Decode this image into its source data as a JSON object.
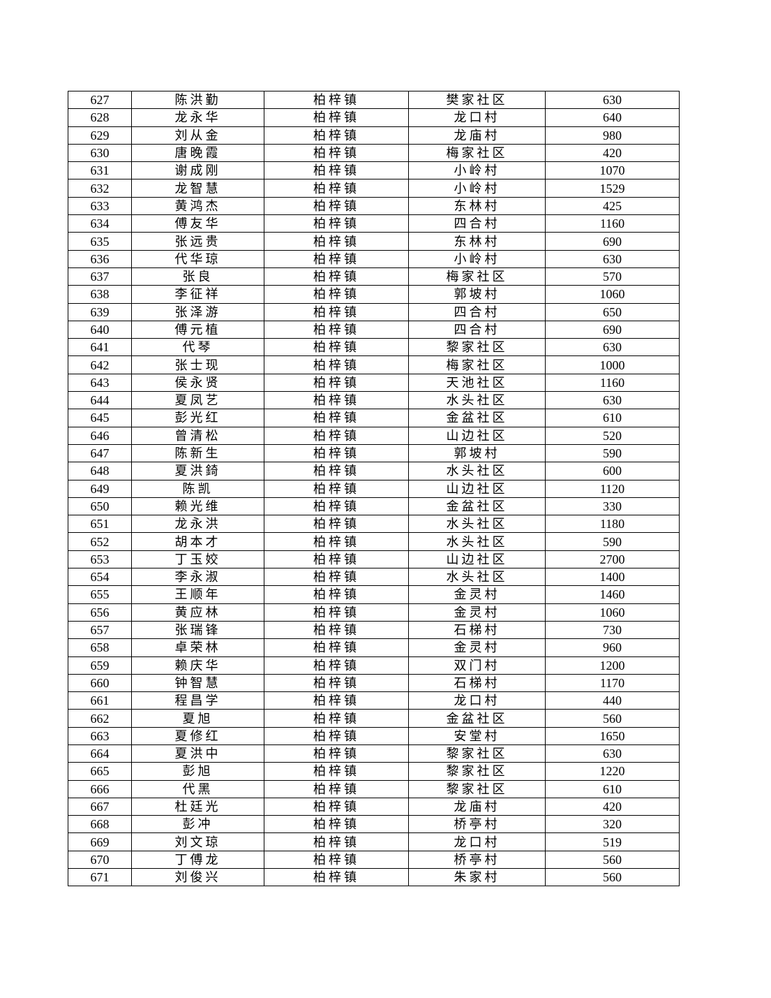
{
  "rows": [
    [
      "627",
      "陈洪勤",
      "柏梓镇",
      "樊家社区",
      "630"
    ],
    [
      "628",
      "龙永华",
      "柏梓镇",
      "龙口村",
      "640"
    ],
    [
      "629",
      "刘从金",
      "柏梓镇",
      "龙庙村",
      "980"
    ],
    [
      "630",
      "唐晚霞",
      "柏梓镇",
      "梅家社区",
      "420"
    ],
    [
      "631",
      "谢成刚",
      "柏梓镇",
      "小岭村",
      "1070"
    ],
    [
      "632",
      "龙智慧",
      "柏梓镇",
      "小岭村",
      "1529"
    ],
    [
      "633",
      "黄鸿杰",
      "柏梓镇",
      "东林村",
      "425"
    ],
    [
      "634",
      "傅友华",
      "柏梓镇",
      "四合村",
      "1160"
    ],
    [
      "635",
      "张远贵",
      "柏梓镇",
      "东林村",
      "690"
    ],
    [
      "636",
      "代华琼",
      "柏梓镇",
      "小岭村",
      "630"
    ],
    [
      "637",
      "张良",
      "柏梓镇",
      "梅家社区",
      "570"
    ],
    [
      "638",
      "李征祥",
      "柏梓镇",
      "郭坡村",
      "1060"
    ],
    [
      "639",
      "张泽游",
      "柏梓镇",
      "四合村",
      "650"
    ],
    [
      "640",
      "傅元植",
      "柏梓镇",
      "四合村",
      "690"
    ],
    [
      "641",
      "代琴",
      "柏梓镇",
      "黎家社区",
      "630"
    ],
    [
      "642",
      "张士现",
      "柏梓镇",
      "梅家社区",
      "1000"
    ],
    [
      "643",
      "侯永贤",
      "柏梓镇",
      "天池社区",
      "1160"
    ],
    [
      "644",
      "夏凤艺",
      "柏梓镇",
      "水头社区",
      "630"
    ],
    [
      "645",
      "彭光红",
      "柏梓镇",
      "金盆社区",
      "610"
    ],
    [
      "646",
      "曾清松",
      "柏梓镇",
      "山边社区",
      "520"
    ],
    [
      "647",
      "陈新生",
      "柏梓镇",
      "郭坡村",
      "590"
    ],
    [
      "648",
      "夏洪錡",
      "柏梓镇",
      "水头社区",
      "600"
    ],
    [
      "649",
      "陈凯",
      "柏梓镇",
      "山边社区",
      "1120"
    ],
    [
      "650",
      "赖光维",
      "柏梓镇",
      "金盆社区",
      "330"
    ],
    [
      "651",
      "龙永洪",
      "柏梓镇",
      "水头社区",
      "1180"
    ],
    [
      "652",
      "胡本才",
      "柏梓镇",
      "水头社区",
      "590"
    ],
    [
      "653",
      "丁玉姣",
      "柏梓镇",
      "山边社区",
      "2700"
    ],
    [
      "654",
      "李永淑",
      "柏梓镇",
      "水头社区",
      "1400"
    ],
    [
      "655",
      "王顺年",
      "柏梓镇",
      "金灵村",
      "1460"
    ],
    [
      "656",
      "黄应林",
      "柏梓镇",
      "金灵村",
      "1060"
    ],
    [
      "657",
      "张瑞锋",
      "柏梓镇",
      "石梯村",
      "730"
    ],
    [
      "658",
      "卓荣林",
      "柏梓镇",
      "金灵村",
      "960"
    ],
    [
      "659",
      "赖庆华",
      "柏梓镇",
      "双门村",
      "1200"
    ],
    [
      "660",
      "钟智慧",
      "柏梓镇",
      "石梯村",
      "1170"
    ],
    [
      "661",
      "程昌学",
      "柏梓镇",
      "龙口村",
      "440"
    ],
    [
      "662",
      "夏旭",
      "柏梓镇",
      "金盆社区",
      "560"
    ],
    [
      "663",
      "夏修红",
      "柏梓镇",
      "安堂村",
      "1650"
    ],
    [
      "664",
      "夏洪中",
      "柏梓镇",
      "黎家社区",
      "630"
    ],
    [
      "665",
      "彭旭",
      "柏梓镇",
      "黎家社区",
      "1220"
    ],
    [
      "666",
      "代黑",
      "柏梓镇",
      "黎家社区",
      "610"
    ],
    [
      "667",
      "杜廷光",
      "柏梓镇",
      "龙庙村",
      "420"
    ],
    [
      "668",
      "彭冲",
      "柏梓镇",
      "桥亭村",
      "320"
    ],
    [
      "669",
      "刘文琼",
      "柏梓镇",
      "龙口村",
      "519"
    ],
    [
      "670",
      "丁傅龙",
      "柏梓镇",
      "桥亭村",
      "560"
    ],
    [
      "671",
      "刘俊兴",
      "柏梓镇",
      "朱家村",
      "560"
    ]
  ]
}
